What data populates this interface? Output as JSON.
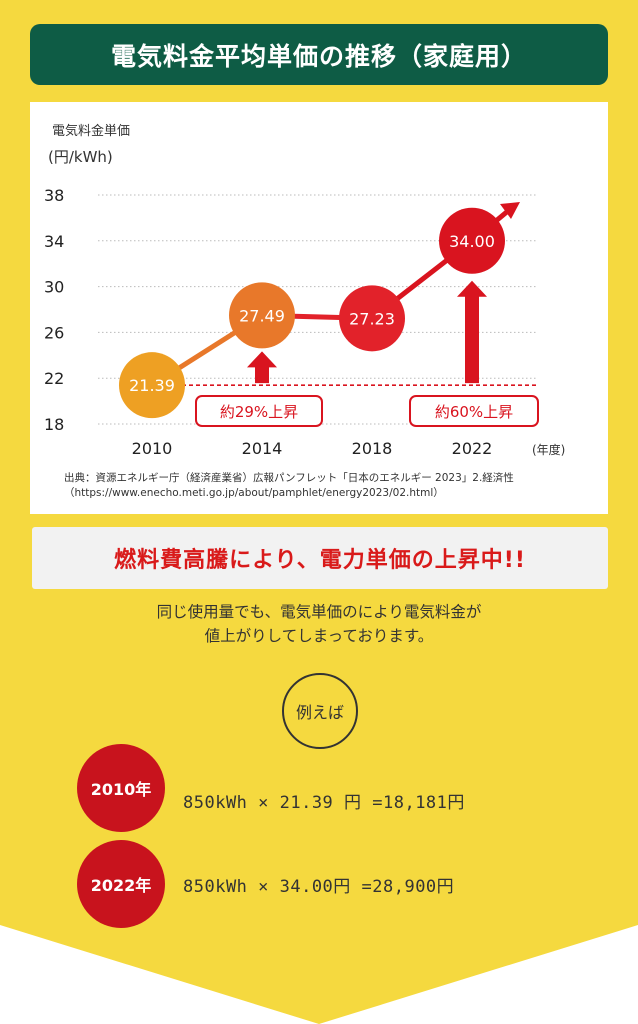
{
  "title": "電気料金平均単価の推移（家庭用）",
  "colors": {
    "background_yellow": "#f5d93f",
    "title_green": "#0e5c45",
    "accent_red": "#c8131d",
    "accent_orange": "#e8782a"
  },
  "chart_data": {
    "type": "line",
    "title": "",
    "ylabel_line1": "電気料金単価",
    "ylabel_line2": "(円/kWh)",
    "xlabel": "",
    "x_unit": "(年度)",
    "categories": [
      "2010",
      "2014",
      "2018",
      "2022"
    ],
    "values": [
      21.39,
      27.49,
      27.23,
      34.0
    ],
    "data_labels": [
      "21.39",
      "27.49",
      "27.23",
      "34.00"
    ],
    "y_ticks": [
      "38",
      "34",
      "30",
      "26",
      "22",
      "18"
    ],
    "y_tick_values": [
      38,
      34,
      30,
      26,
      22,
      18
    ],
    "ylim": [
      18,
      38
    ],
    "grid": true,
    "baseline_value": 21.39,
    "annotations": [
      {
        "label": "約29%上昇",
        "from": 21.39,
        "to": 27.49
      },
      {
        "label": "約60%上昇",
        "from": 21.39,
        "to": 34.0
      }
    ]
  },
  "source": {
    "line1": "出典：資源エネルギー庁（経済産業省）広報パンフレット「日本のエネルギー 2023」2.経済性",
    "line2": "（https://www.enecho.meti.go.jp/about/pamphlet/energy2023/02.html）"
  },
  "banner": "燃料費高騰により、電力単価の上昇中!!",
  "description": {
    "line1": "同じ使用量でも、電気単価のにより電気料金が",
    "line2": "値上がりしてしまっております。"
  },
  "example_label": "例えば",
  "examples": [
    {
      "year": "2010年",
      "calc": "850kWh × 21.39 円 =18,181円"
    },
    {
      "year": "2022年",
      "calc": "850kWh × 34.00円 =28,900円"
    }
  ]
}
